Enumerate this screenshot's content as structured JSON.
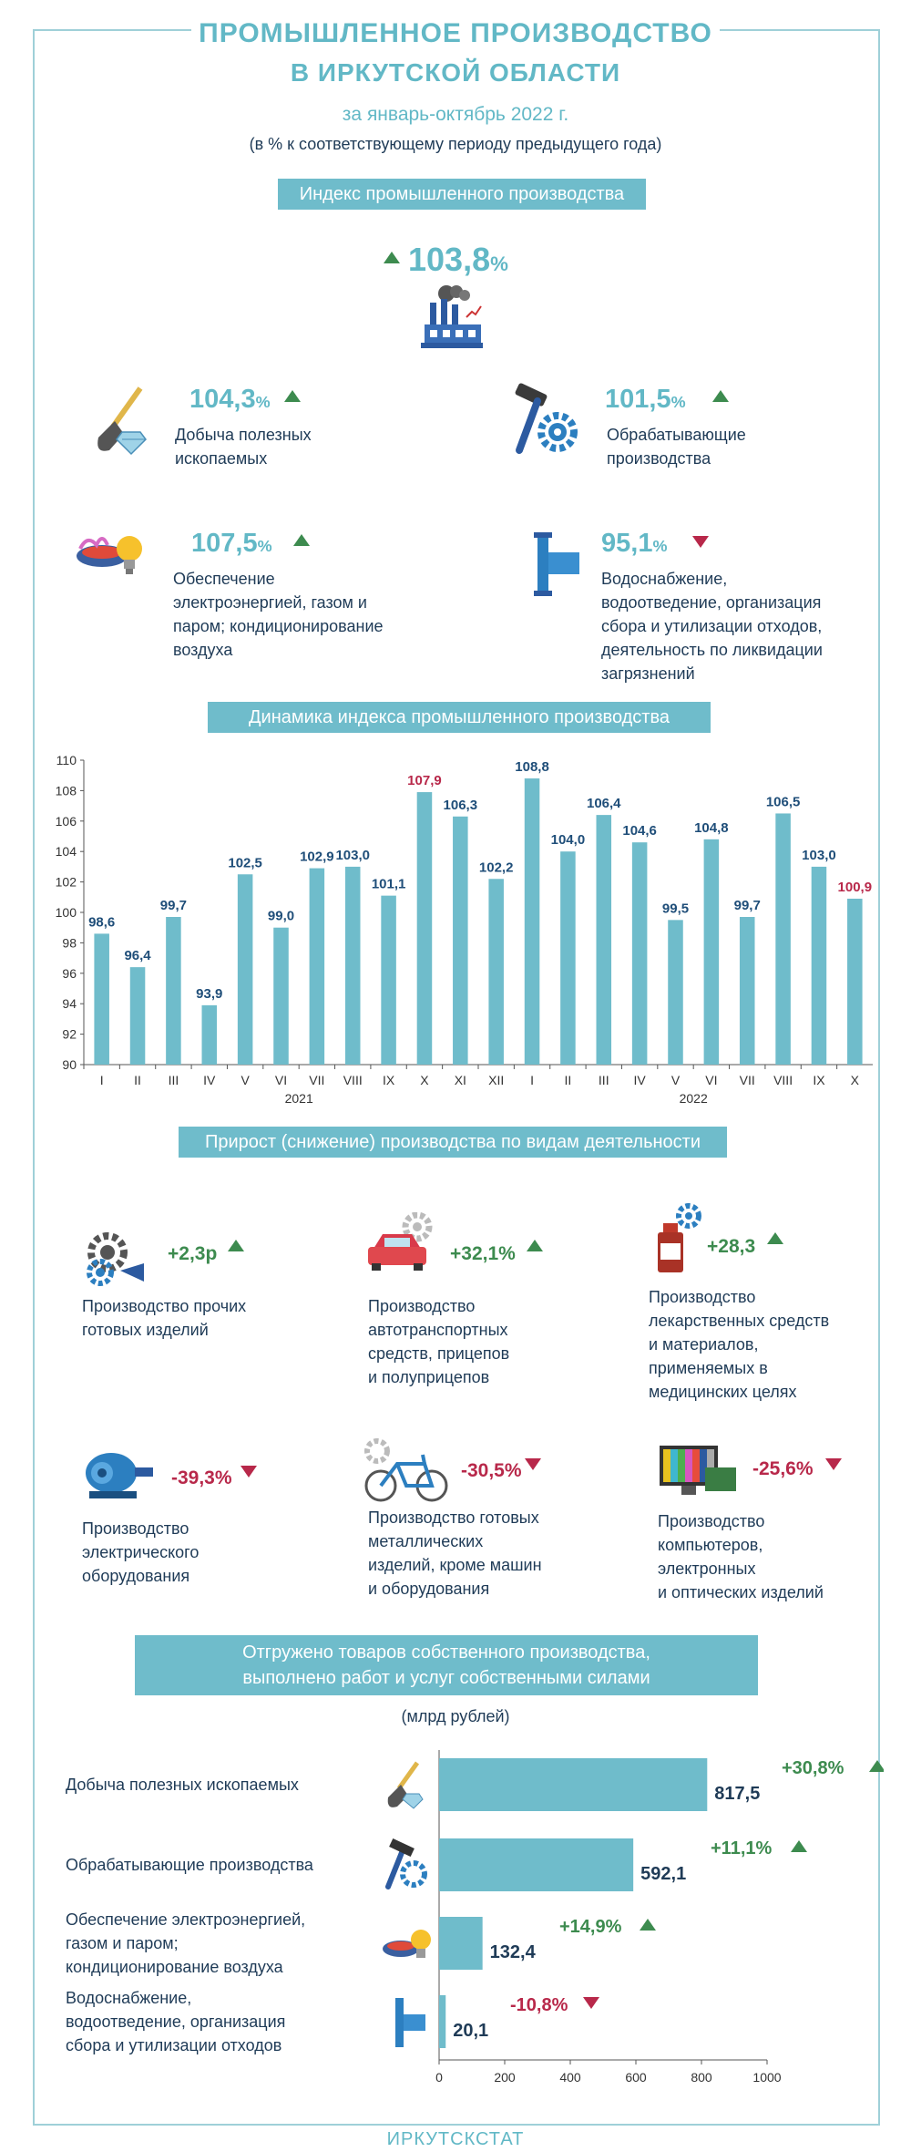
{
  "header": {
    "title_line1": "ПРОМЫШЛЕННОЕ ПРОИЗВОДСТВО",
    "title_line2": "В ИРКУТСКОЙ ОБЛАСТИ",
    "period": "за январь-октябрь 2022 г.",
    "note": "(в % к соответствующему периоду предыдущего года)"
  },
  "index_section": {
    "banner": "Индекс промышленного производства",
    "total_value": "103,8",
    "total_unit": "%",
    "total_trend": "up",
    "items": [
      {
        "value": "104,3",
        "unit": "%",
        "trend": "up",
        "label_lines": [
          "Добыча полезных",
          "ископаемых"
        ],
        "icon": "shovel-diamond-icon"
      },
      {
        "value": "101,5",
        "unit": "%",
        "trend": "up",
        "label_lines": [
          "Обрабатывающие",
          "производства"
        ],
        "icon": "hammer-gear-icon"
      },
      {
        "value": "107,5",
        "unit": "%",
        "trend": "up",
        "label_lines": [
          "Обеспечение",
          "электроэнергией, газом и",
          "паром; кондиционирование",
          "воздуха"
        ],
        "icon": "bulb-burner-icon"
      },
      {
        "value": "95,1",
        "unit": "%",
        "trend": "down",
        "label_lines": [
          "Водоснабжение,",
          "водоотведение, организация",
          "сбора и утилизации отходов,",
          "деятельность по ликвидации",
          "загрязнений"
        ],
        "icon": "pipe-icon"
      }
    ]
  },
  "dynamics_section": {
    "banner": "Динамика индекса промышленного производства"
  },
  "chart_data": [
    {
      "type": "bar",
      "title": "Динамика индекса промышленного производства",
      "categories": [
        "I",
        "II",
        "III",
        "IV",
        "V",
        "VI",
        "VII",
        "VIII",
        "IX",
        "X",
        "XI",
        "XII",
        "I",
        "II",
        "III",
        "IV",
        "V",
        "VI",
        "VII",
        "VIII",
        "IX",
        "X"
      ],
      "year_labels": [
        "2021",
        "2022"
      ],
      "values": [
        98.6,
        96.4,
        99.7,
        93.9,
        102.5,
        99.0,
        102.9,
        103.0,
        101.1,
        107.9,
        106.3,
        102.2,
        108.8,
        104.0,
        106.4,
        104.6,
        99.5,
        104.8,
        99.7,
        106.5,
        103.0,
        100.9
      ],
      "value_labels": [
        "98,6",
        "96,4",
        "99,7",
        "93,9",
        "102,5",
        "99,0",
        "102,9",
        "103,0",
        "101,1",
        "107,9",
        "106,3",
        "102,2",
        "108,8",
        "104,0",
        "106,4",
        "104,6",
        "99,5",
        "104,8",
        "99,7",
        "106,5",
        "103,0",
        "100,9"
      ],
      "highlighted": [
        9,
        21
      ],
      "ylim": [
        90,
        110
      ],
      "yticks": [
        "90",
        "92",
        "94",
        "96",
        "98",
        "100",
        "102",
        "104",
        "106",
        "108",
        "110"
      ],
      "grid": false,
      "colors": {
        "bar": "#6fbccb",
        "label": "#1f4e79",
        "highlight": "#b8284a"
      }
    },
    {
      "type": "bar",
      "orientation": "horizontal",
      "title": "Отгружено товаров собственного производства, выполнено работ и услуг собственными силами",
      "unit_note": "(млрд рублей)",
      "categories": [
        "Добыча полезных ископаемых",
        "Обрабатывающие производства",
        "Обеспечение электроэнергией, газом и паром; кондиционирование воздуха",
        "Водоснабжение, водоотведение, организация сбора и утилизации отходов"
      ],
      "category_lines": [
        [
          "Добыча полезных ископаемых"
        ],
        [
          "Обрабатывающие производства"
        ],
        [
          "Обеспечение электроэнергией,",
          "газом и паром;",
          "кондиционирование воздуха"
        ],
        [
          "Водоснабжение,",
          "водоотведение, организация",
          "сбора и утилизации отходов"
        ]
      ],
      "values": [
        817.5,
        592.1,
        132.4,
        20.1
      ],
      "value_labels": [
        "817,5",
        "592,1",
        "132,4",
        "20,1"
      ],
      "changes": [
        "+30,8%",
        "+11,1%",
        "+14,9%",
        "-10,8%"
      ],
      "trends": [
        "up",
        "up",
        "up",
        "down"
      ],
      "icons": [
        "shovel-diamond-icon",
        "hammer-gear-icon",
        "bulb-burner-icon",
        "pipe-icon"
      ],
      "xlim": [
        0,
        1000
      ],
      "xticks": [
        "0",
        "200",
        "400",
        "600",
        "800",
        "1000"
      ],
      "colors": {
        "bar": "#6fbccb"
      }
    }
  ],
  "growth_section": {
    "banner": "Прирост (снижение) производства по видам деятельности",
    "items": [
      {
        "value": "+2,3р",
        "trend": "up",
        "label_lines": [
          "Производство прочих",
          "готовых изделий"
        ],
        "icon": "gears-horn-icon"
      },
      {
        "value": "+32,1%",
        "trend": "up",
        "label_lines": [
          "Производство",
          "автотранспортных",
          "средств, прицепов",
          "и полуприцепов"
        ],
        "icon": "car-gear-icon"
      },
      {
        "value": "+28,3",
        "trend": "up",
        "label_lines": [
          "Производство",
          "лекарственных средств",
          "и материалов,",
          "применяемых в",
          "медицинских целях"
        ],
        "icon": "medicine-bottle-icon"
      },
      {
        "value": "-39,3%",
        "trend": "down",
        "label_lines": [
          "Производство",
          "электрического",
          "оборудования"
        ],
        "icon": "electric-motor-icon"
      },
      {
        "value": "-30,5%",
        "trend": "down",
        "label_lines": [
          "Производство готовых",
          "металлических",
          "изделий, кроме машин",
          "и оборудования"
        ],
        "icon": "bicycle-icon"
      },
      {
        "value": "-25,6%",
        "trend": "down",
        "label_lines": [
          "Производство",
          "компьютеров,",
          "электронных",
          "и оптических изделий"
        ],
        "icon": "computer-monitor-icon"
      }
    ]
  },
  "shipment_section": {
    "banner_lines": [
      "Отгружено товаров собственного производства,",
      "выполнено работ и услуг собственными силами"
    ],
    "unit_note": "(млрд рублей)"
  },
  "footer": "ИРКУТСКСТАТ"
}
